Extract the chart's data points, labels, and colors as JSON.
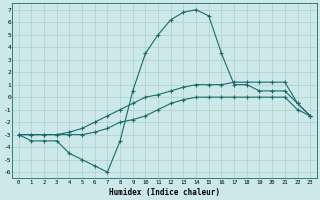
{
  "xlabel": "Humidex (Indice chaleur)",
  "background_color": "#cce8e8",
  "grid_color": "#aacfcf",
  "line_color": "#1a6b6b",
  "xlim": [
    -0.5,
    23.5
  ],
  "ylim": [
    -6.5,
    7.5
  ],
  "xticks": [
    0,
    1,
    2,
    3,
    4,
    5,
    6,
    7,
    8,
    9,
    10,
    11,
    12,
    13,
    14,
    15,
    16,
    17,
    18,
    19,
    20,
    21,
    22,
    23
  ],
  "yticks": [
    -6,
    -5,
    -4,
    -3,
    -2,
    -1,
    0,
    1,
    2,
    3,
    4,
    5,
    6,
    7
  ],
  "line1_x": [
    0,
    1,
    2,
    3,
    4,
    5,
    6,
    7,
    8,
    9,
    10,
    11,
    12,
    13,
    14,
    15,
    16,
    17,
    18,
    19,
    20,
    21,
    22,
    23
  ],
  "line1_y": [
    -3,
    -3.5,
    -3.5,
    -3.5,
    -4.5,
    -5,
    -5.5,
    -6,
    -3.5,
    0.5,
    3.5,
    5,
    6.2,
    6.8,
    7,
    6.5,
    3.5,
    1,
    1,
    0.5,
    0.5,
    0.5,
    -0.5,
    -1.5
  ],
  "line2_x": [
    0,
    1,
    2,
    3,
    4,
    5,
    6,
    7,
    8,
    9,
    10,
    11,
    12,
    13,
    14,
    15,
    16,
    17,
    18,
    19,
    20,
    21,
    22,
    23
  ],
  "line2_y": [
    -3,
    -3,
    -3,
    -3,
    -2.8,
    -2.5,
    -2,
    -1.5,
    -1,
    -0.5,
    0,
    0.2,
    0.5,
    0.8,
    1,
    1,
    1,
    1.2,
    1.2,
    1.2,
    1.2,
    1.2,
    -0.5,
    -1.5
  ],
  "line3_x": [
    0,
    1,
    2,
    3,
    4,
    5,
    6,
    7,
    8,
    9,
    10,
    11,
    12,
    13,
    14,
    15,
    16,
    17,
    18,
    19,
    20,
    21,
    22,
    23
  ],
  "line3_y": [
    -3,
    -3,
    -3,
    -3,
    -3,
    -3,
    -2.8,
    -2.5,
    -2,
    -1.8,
    -1.5,
    -1,
    -0.5,
    -0.2,
    0,
    0,
    0,
    0,
    0,
    0,
    0,
    0,
    -1,
    -1.5
  ]
}
